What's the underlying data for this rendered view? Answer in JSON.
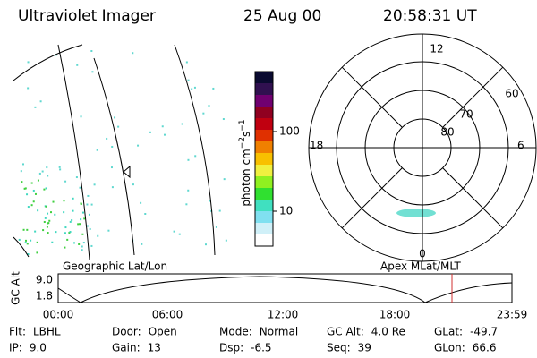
{
  "header": {
    "title": "Ultraviolet Imager",
    "date": "25 Aug 00",
    "time": "20:58:31 UT"
  },
  "colorbar": {
    "label": "photon cm",
    "exp1": "−2",
    "unit2": "s",
    "exp2": "−1",
    "ticks": [
      "100",
      "10"
    ]
  },
  "polar": {
    "mlt": [
      "12",
      "18",
      "6",
      "0"
    ],
    "mlat": [
      "60",
      "70",
      "80"
    ]
  },
  "panels": {
    "left": "Geographic Lat/Lon",
    "right": "Apex MLat/MLT"
  },
  "altitude": {
    "ylabel": "GC Alt",
    "yticks": [
      "9.0",
      "1.8"
    ],
    "xticks": [
      "00:00",
      "06:00",
      "12:00",
      "18:00",
      "23:59"
    ]
  },
  "footer": [
    [
      [
        "Flt:",
        "LBHL"
      ],
      [
        "Door:",
        "Open"
      ],
      [
        "Mode:",
        "Normal"
      ],
      [
        "GC Alt:",
        "4.0 Re"
      ],
      [
        "GLat:",
        "-49.7"
      ]
    ],
    [
      [
        "IP:",
        "9.0"
      ],
      [
        "Gain:",
        "13"
      ],
      [
        "Dsp:",
        "-6.5"
      ],
      [
        "Seq:",
        "39"
      ],
      [
        "GLon:",
        "66.6"
      ]
    ]
  ]
}
